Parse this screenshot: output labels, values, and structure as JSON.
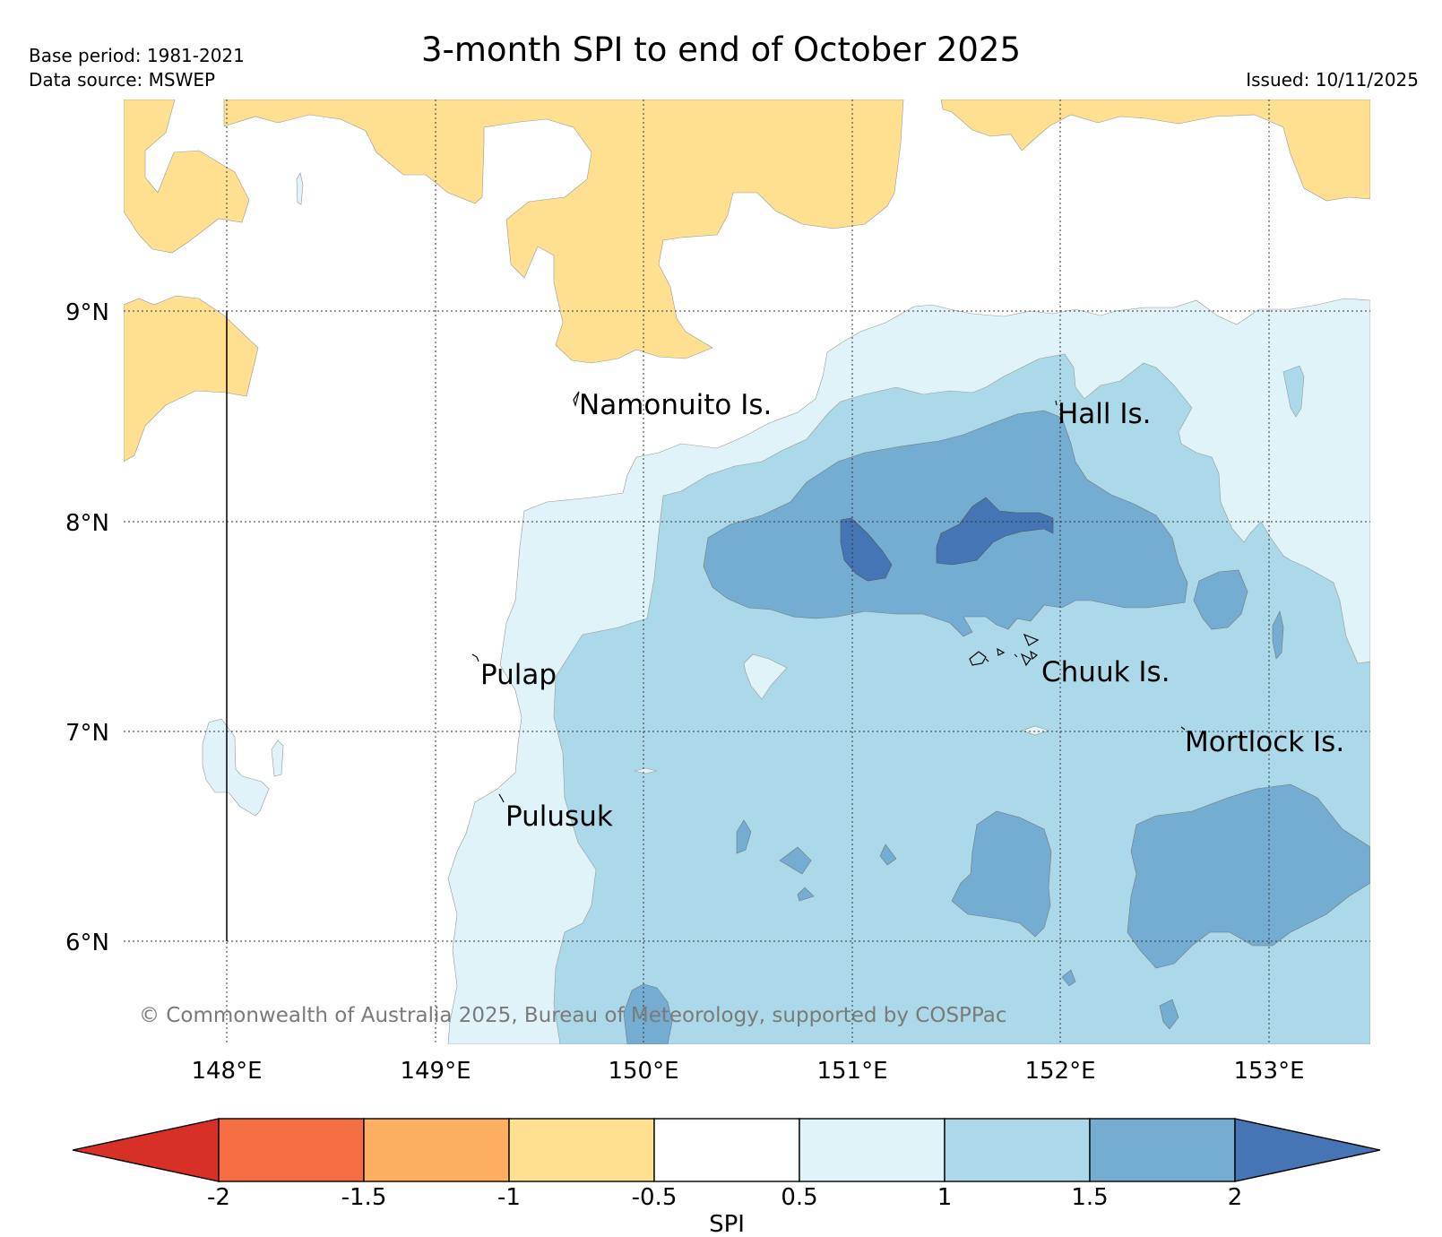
{
  "header": {
    "title": "3-month SPI to end of October 2025",
    "base_period": "Base period: 1981-2021",
    "data_source": "Data source: MSWEP",
    "issued": "Issued: 10/11/2025"
  },
  "map": {
    "copyright": "© Commonwealth of Australia 2025, Bureau of Meteorology, supported by COSPPac",
    "lat_labels": [
      "9°N",
      "8°N",
      "7°N",
      "6°N"
    ],
    "lon_labels": [
      "148°E",
      "149°E",
      "150°E",
      "151°E",
      "152°E",
      "153°E"
    ],
    "places": [
      {
        "name": "Namonuito Is."
      },
      {
        "name": "Hall Is."
      },
      {
        "name": "Pulap"
      },
      {
        "name": "Chuuk Is."
      },
      {
        "name": "Mortlock Is."
      },
      {
        "name": "Pulusuk"
      }
    ]
  },
  "legend": {
    "label": "SPI",
    "ticks": [
      "-2",
      "-1.5",
      "-1",
      "-0.5",
      "0.5",
      "1",
      "1.5",
      "2"
    ],
    "colors": {
      "below_-2": "#d73027",
      "-2_-1.5": "#f46d43",
      "-1.5_-1": "#fdae61",
      "-1_-0.5": "#fee090",
      "-0.5_0.5": "#ffffff",
      "0.5_1": "#e0f3f8",
      "1_1.5": "#abd9e9",
      "1.5_2": "#74add1",
      "above_2": "#4575b4"
    }
  }
}
